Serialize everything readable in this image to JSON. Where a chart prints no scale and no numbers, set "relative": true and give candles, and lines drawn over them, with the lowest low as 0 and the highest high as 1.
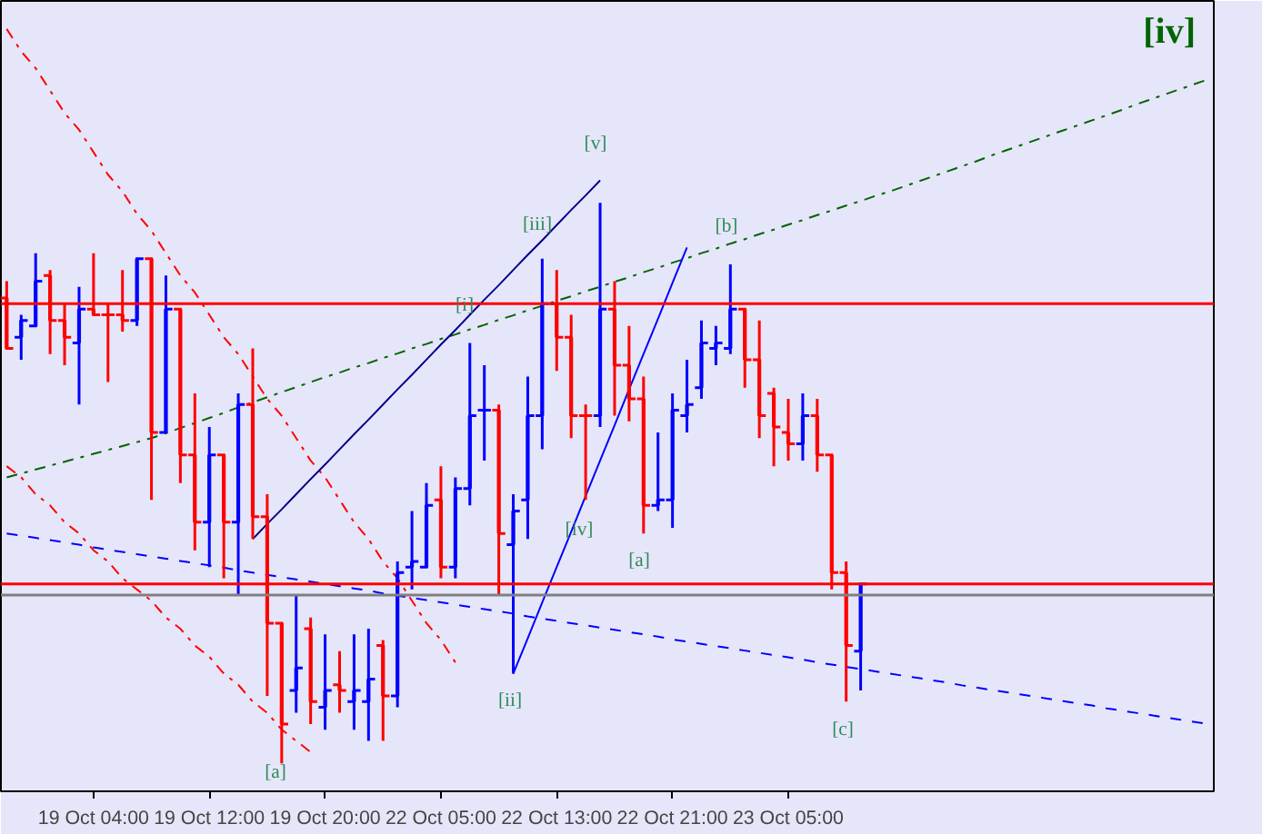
{
  "chart_data": {
    "type": "candlestick",
    "relative": true,
    "grid": false,
    "categories": [
      null,
      null,
      null,
      null,
      null,
      null,
      "19 Oct 04:00",
      null,
      null,
      null,
      null,
      null,
      null,
      null,
      "19 Oct 12:00",
      null,
      null,
      null,
      null,
      null,
      null,
      null,
      "19 Oct 20:00",
      null,
      null,
      null,
      null,
      null,
      null,
      null,
      "22 Oct 05:00",
      null,
      null,
      null,
      null,
      null,
      null,
      null,
      "22 Oct 13:00",
      null,
      null,
      null,
      null,
      null,
      null,
      null,
      "22 Oct 21:00",
      null,
      null,
      null,
      null,
      null,
      null,
      null,
      "23 Oct 05:00",
      null,
      null,
      null,
      null,
      null,
      null,
      null,
      null,
      null,
      null,
      null,
      null,
      null,
      null,
      null,
      null,
      null,
      null,
      null,
      null,
      null,
      null,
      null,
      null,
      null,
      null,
      null,
      null,
      null
    ],
    "ohlc": [
      [
        0.83,
        0.86,
        0.74,
        0.74
      ],
      [
        0.76,
        0.8,
        0.72,
        0.79
      ],
      [
        0.78,
        0.91,
        0.78,
        0.86
      ],
      [
        0.87,
        0.88,
        0.73,
        0.79
      ],
      [
        0.79,
        0.82,
        0.71,
        0.76
      ],
      [
        0.75,
        0.85,
        0.64,
        0.81
      ],
      [
        0.81,
        0.91,
        0.8,
        0.8
      ],
      [
        0.8,
        0.82,
        0.68,
        0.8
      ],
      [
        0.8,
        0.88,
        0.77,
        0.79
      ],
      [
        0.79,
        0.9,
        0.78,
        0.9
      ],
      [
        0.9,
        0.9,
        0.47,
        0.59
      ],
      [
        0.59,
        0.87,
        0.59,
        0.81
      ],
      [
        0.81,
        0.81,
        0.5,
        0.55
      ],
      [
        0.55,
        0.66,
        0.38,
        0.43
      ],
      [
        0.43,
        0.6,
        0.35,
        0.55
      ],
      [
        0.55,
        0.55,
        0.33,
        0.43
      ],
      [
        0.43,
        0.66,
        0.3,
        0.64
      ],
      [
        0.64,
        0.74,
        0.4,
        0.44
      ],
      [
        0.44,
        0.48,
        0.12,
        0.25
      ],
      [
        0.25,
        0.25,
        0.0,
        0.07
      ],
      [
        0.13,
        0.3,
        0.09,
        0.17
      ],
      [
        0.24,
        0.26,
        0.07,
        0.11
      ],
      [
        0.1,
        0.23,
        0.06,
        0.13
      ],
      [
        0.14,
        0.2,
        0.09,
        0.13
      ],
      [
        0.11,
        0.23,
        0.06,
        0.13
      ],
      [
        0.11,
        0.24,
        0.04,
        0.15
      ],
      [
        0.21,
        0.22,
        0.04,
        0.12
      ],
      [
        0.12,
        0.36,
        0.1,
        0.34
      ],
      [
        0.35,
        0.45,
        0.31,
        0.36
      ],
      [
        0.35,
        0.5,
        0.35,
        0.46
      ],
      [
        0.47,
        0.53,
        0.33,
        0.35
      ],
      [
        0.35,
        0.51,
        0.33,
        0.49
      ],
      [
        0.49,
        0.75,
        0.46,
        0.62
      ],
      [
        0.63,
        0.71,
        0.54,
        0.63
      ],
      [
        0.63,
        0.64,
        0.3,
        0.41
      ],
      [
        0.39,
        0.48,
        0.16,
        0.45
      ],
      [
        0.47,
        0.69,
        0.4,
        0.62
      ],
      [
        0.62,
        0.9,
        0.56,
        0.82
      ],
      [
        0.82,
        0.88,
        0.7,
        0.76
      ],
      [
        0.76,
        0.8,
        0.58,
        0.62
      ],
      [
        0.62,
        0.64,
        0.47,
        0.62
      ],
      [
        0.62,
        1.0,
        0.6,
        0.81
      ],
      [
        0.81,
        0.86,
        0.62,
        0.71
      ],
      [
        0.71,
        0.78,
        0.61,
        0.65
      ],
      [
        0.65,
        0.69,
        0.41,
        0.46
      ],
      [
        0.46,
        0.59,
        0.45,
        0.47
      ],
      [
        0.47,
        0.66,
        0.42,
        0.63
      ],
      [
        0.62,
        0.72,
        0.59,
        0.64
      ],
      [
        0.67,
        0.79,
        0.65,
        0.75
      ],
      [
        0.74,
        0.78,
        0.71,
        0.75
      ],
      [
        0.74,
        0.89,
        0.73,
        0.81
      ],
      [
        0.81,
        0.81,
        0.67,
        0.72
      ],
      [
        0.72,
        0.79,
        0.58,
        0.62
      ],
      [
        0.66,
        0.67,
        0.53,
        0.6
      ],
      [
        0.59,
        0.65,
        0.54,
        0.57
      ],
      [
        0.57,
        0.66,
        0.54,
        0.62
      ],
      [
        0.62,
        0.65,
        0.52,
        0.55
      ],
      [
        0.55,
        0.55,
        0.31,
        0.34
      ],
      [
        0.34,
        0.36,
        0.11,
        0.21
      ],
      [
        0.2,
        0.32,
        0.13,
        0.32
      ],
      null,
      null,
      null,
      null,
      null,
      null,
      null,
      null,
      null,
      null,
      null,
      null,
      null,
      null,
      null,
      null,
      null,
      null,
      null,
      null,
      null,
      null,
      null,
      null
    ],
    "colors": [
      "#ff0000",
      "#0000ff",
      "#0000ff",
      "#ff0000",
      "#ff0000",
      "#0000ff",
      "#ff0000",
      "#ff0000",
      "#ff0000",
      "#0000ff",
      "#ff0000",
      "#0000ff",
      "#ff0000",
      "#ff0000",
      "#0000ff",
      "#ff0000",
      "#0000ff",
      "#ff0000",
      "#ff0000",
      "#ff0000",
      "#0000ff",
      "#ff0000",
      "#0000ff",
      "#ff0000",
      "#0000ff",
      "#0000ff",
      "#ff0000",
      "#0000ff",
      "#0000ff",
      "#0000ff",
      "#ff0000",
      "#0000ff",
      "#0000ff",
      "#0000ff",
      "#ff0000",
      "#0000ff",
      "#0000ff",
      "#0000ff",
      "#ff0000",
      "#ff0000",
      "#ff0000",
      "#0000ff",
      "#ff0000",
      "#ff0000",
      "#ff0000",
      "#0000ff",
      "#0000ff",
      "#0000ff",
      "#0000ff",
      "#0000ff",
      "#0000ff",
      "#ff0000",
      "#ff0000",
      "#ff0000",
      "#ff0000",
      "#0000ff",
      "#ff0000",
      "#ff0000",
      "#ff0000",
      "#0000ff",
      null,
      null,
      null,
      null,
      null,
      null,
      null,
      null,
      null,
      null,
      null,
      null,
      null,
      null,
      null,
      null,
      null,
      null,
      null,
      null,
      null,
      null,
      null,
      null
    ],
    "series": [
      {
        "type": "line",
        "color": "#ff0000",
        "line_style": "dashed",
        "values": [
          1.31,
          1.27,
          1.24,
          1.2,
          1.16,
          1.13,
          1.09,
          1.05,
          1.02,
          0.98,
          0.95,
          0.91,
          0.87,
          0.84,
          0.8,
          0.76,
          0.73,
          0.69,
          0.65,
          0.62,
          0.58,
          0.54,
          0.51,
          0.47,
          0.43,
          0.4,
          0.36,
          0.33,
          0.29,
          0.25,
          0.22,
          0.18,
          null,
          null,
          null,
          null,
          null,
          null,
          null,
          null,
          null,
          null,
          null,
          null,
          null,
          null,
          null,
          null,
          null,
          null,
          null,
          null,
          null,
          null,
          null,
          null,
          null,
          null,
          null,
          null,
          null,
          null,
          null,
          null,
          null,
          null,
          null,
          null,
          null,
          null,
          null,
          null,
          null,
          null,
          null,
          null,
          null,
          null,
          null,
          null,
          null,
          null,
          null,
          null
        ]
      },
      {
        "type": "line",
        "color": "#ff0000",
        "line_style": "dashed",
        "values": [
          0.53,
          0.51,
          0.48,
          0.46,
          0.43,
          0.41,
          0.38,
          0.36,
          0.33,
          0.31,
          0.29,
          0.26,
          0.24,
          0.21,
          0.19,
          0.16,
          0.14,
          0.11,
          0.09,
          0.06,
          0.04,
          0.02,
          null,
          null,
          null,
          null,
          null,
          null,
          null,
          null,
          null,
          null,
          null,
          null,
          null,
          null,
          null,
          null,
          null,
          null,
          null,
          null,
          null,
          null,
          null,
          null,
          null,
          null,
          null,
          null,
          null,
          null,
          null,
          null,
          null,
          null,
          null,
          null,
          null,
          null,
          null,
          null,
          null,
          null,
          null,
          null,
          null,
          null,
          null,
          null,
          null,
          null,
          null,
          null,
          null,
          null,
          null,
          null,
          null,
          null,
          null,
          null,
          null,
          null
        ]
      },
      {
        "type": "line",
        "color": "#0000ff",
        "line_style": "dotted",
        "values": [
          0.41,
          0.406,
          0.402,
          0.398,
          0.394,
          0.39,
          0.385,
          0.381,
          0.377,
          0.373,
          0.369,
          0.365,
          0.361,
          0.357,
          0.353,
          0.349,
          0.344,
          0.34,
          0.336,
          0.332,
          0.328,
          0.324,
          0.32,
          0.316,
          0.312,
          0.308,
          0.303,
          0.299,
          0.295,
          0.291,
          0.287,
          0.283,
          0.279,
          0.275,
          0.271,
          0.267,
          0.262,
          0.258,
          0.254,
          0.25,
          0.246,
          0.242,
          0.238,
          0.234,
          0.23,
          0.226,
          0.221,
          0.217,
          0.213,
          0.209,
          0.205,
          0.201,
          0.197,
          0.193,
          0.189,
          0.185,
          0.18,
          0.176,
          0.172,
          0.168,
          0.164,
          0.16,
          0.156,
          0.152,
          0.148,
          0.144,
          0.139,
          0.135,
          0.131,
          0.127,
          0.123,
          0.119,
          0.115,
          0.111,
          0.107,
          0.103,
          0.098,
          0.094,
          0.09,
          0.086,
          0.082,
          0.078,
          0.074,
          0.07
        ]
      },
      {
        "type": "line",
        "color": "#006400",
        "line_style": "dashed",
        "values": [
          0.51,
          0.517,
          0.524,
          0.531,
          0.538,
          0.545,
          0.552,
          0.559,
          0.566,
          0.573,
          0.58,
          0.589,
          0.598,
          0.607,
          0.616,
          0.625,
          0.635,
          0.644,
          0.653,
          0.662,
          0.671,
          0.68,
          0.689,
          0.697,
          0.706,
          0.714,
          0.723,
          0.731,
          0.74,
          0.748,
          0.757,
          0.765,
          0.774,
          0.782,
          0.791,
          0.799,
          0.808,
          0.816,
          0.825,
          0.833,
          0.842,
          0.85,
          0.859,
          0.867,
          0.876,
          0.884,
          0.893,
          0.901,
          0.91,
          0.918,
          0.927,
          0.935,
          0.944,
          0.952,
          0.961,
          0.969,
          0.978,
          0.986,
          0.995,
          1.003,
          1.012,
          1.02,
          1.029,
          1.038,
          1.047,
          1.056,
          1.065,
          1.074,
          1.084,
          1.093,
          1.102,
          1.111,
          1.12,
          1.129,
          1.138,
          1.147,
          1.156,
          1.165,
          1.175,
          1.184,
          1.193,
          1.202,
          1.211,
          1.22
        ]
      },
      {
        "type": "line",
        "color": "#00008b",
        "line_style": "solid",
        "values": [
          null,
          null,
          null,
          null,
          null,
          null,
          null,
          null,
          null,
          null,
          null,
          null,
          null,
          null,
          null,
          null,
          null,
          0.4,
          0.427,
          0.453,
          0.48,
          0.507,
          0.533,
          0.56,
          0.587,
          0.613,
          0.64,
          0.667,
          0.693,
          0.72,
          0.747,
          0.773,
          0.8,
          0.827,
          0.853,
          0.88,
          0.907,
          0.933,
          0.96,
          0.987,
          1.013,
          1.04,
          null,
          null,
          null,
          null,
          null,
          null,
          null,
          null,
          null,
          null,
          null,
          null,
          null,
          null,
          null,
          null,
          null,
          null,
          null,
          null,
          null,
          null,
          null,
          null,
          null,
          null,
          null,
          null,
          null,
          null,
          null,
          null,
          null,
          null,
          null,
          null,
          null,
          null,
          null,
          null,
          null,
          null
        ]
      },
      {
        "type": "line",
        "color": "#0000ff",
        "line_style": "solid",
        "values": [
          null,
          null,
          null,
          null,
          null,
          null,
          null,
          null,
          null,
          null,
          null,
          null,
          null,
          null,
          null,
          null,
          null,
          null,
          null,
          null,
          null,
          null,
          null,
          null,
          null,
          null,
          null,
          null,
          null,
          null,
          null,
          null,
          null,
          null,
          null,
          0.16,
          0.223,
          0.287,
          0.35,
          0.413,
          0.477,
          0.54,
          0.603,
          0.667,
          0.73,
          0.793,
          0.857,
          0.92,
          null,
          null,
          null,
          null,
          null,
          null,
          null,
          null,
          null,
          null,
          null,
          null,
          null,
          null,
          null,
          null,
          null,
          null,
          null,
          null,
          null,
          null,
          null,
          null,
          null,
          null,
          null,
          null,
          null,
          null,
          null,
          null,
          null,
          null,
          null,
          null
        ]
      }
    ],
    "ref_lines": [
      {
        "axis": "y",
        "value": 0.82,
        "color": "#ff0000"
      },
      {
        "axis": "y",
        "value": 0.32,
        "color": "#ff0000"
      },
      {
        "axis": "y",
        "value": 0.3,
        "color": "#808080"
      }
    ],
    "annotations": [
      "[v]",
      "[iii]",
      "[i]",
      "[ii]",
      "[iv]",
      "[a]",
      "[b]",
      "[c]",
      "[a]",
      "[iv]"
    ]
  }
}
